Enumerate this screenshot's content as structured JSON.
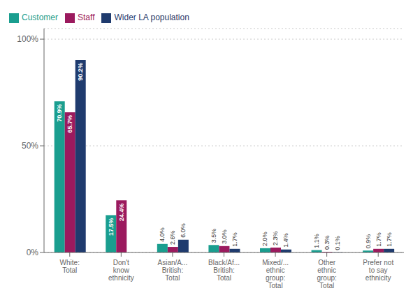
{
  "chart_data": {
    "type": "bar",
    "categories": [
      "White:\nTotal",
      "Don't\nknow\nethnicity",
      "Asian/A...\nBritish:\nTotal",
      "Black/Af...\nBritish:\nTotal",
      "Mixed/...\nethnic\ngroup:\nTotal",
      "Other\nethnic\ngroup:\nTotal",
      "Prefer not\nto say\nethnicity"
    ],
    "series": [
      {
        "name": "Customer",
        "color": "#1a9e8f",
        "values": [
          70.9,
          17.5,
          4.0,
          3.5,
          2.0,
          1.1,
          0.9
        ],
        "value_labels": [
          "70.9%",
          "17.5%",
          "4.0%",
          "3.5%",
          "2.0%",
          "1.1%",
          "0.9%"
        ]
      },
      {
        "name": "Staff",
        "color": "#9b1a5e",
        "values": [
          65.7,
          24.4,
          2.6,
          3.0,
          2.3,
          0.3,
          1.7
        ],
        "value_labels": [
          "65.7%",
          "24.4%",
          "2.6%",
          "3.0%",
          "2.3%",
          "0.3%",
          "1.7%"
        ]
      },
      {
        "name": "Wider LA population",
        "color": "#1f3b6e",
        "values": [
          90.2,
          0.0,
          6.0,
          1.7,
          1.4,
          0.1,
          1.7
        ],
        "value_labels": [
          "90.2%",
          null,
          "6.0%",
          "1.7%",
          "1.4%",
          "0.1%",
          "1.7%"
        ]
      }
    ],
    "ylim": [
      0,
      105
    ],
    "yticks": [
      {
        "value": 0,
        "label": "0%"
      },
      {
        "value": 50,
        "label": "50%"
      },
      {
        "value": 100,
        "label": "100%"
      }
    ],
    "grid": true,
    "legend": "upper left",
    "data_labels": true
  }
}
